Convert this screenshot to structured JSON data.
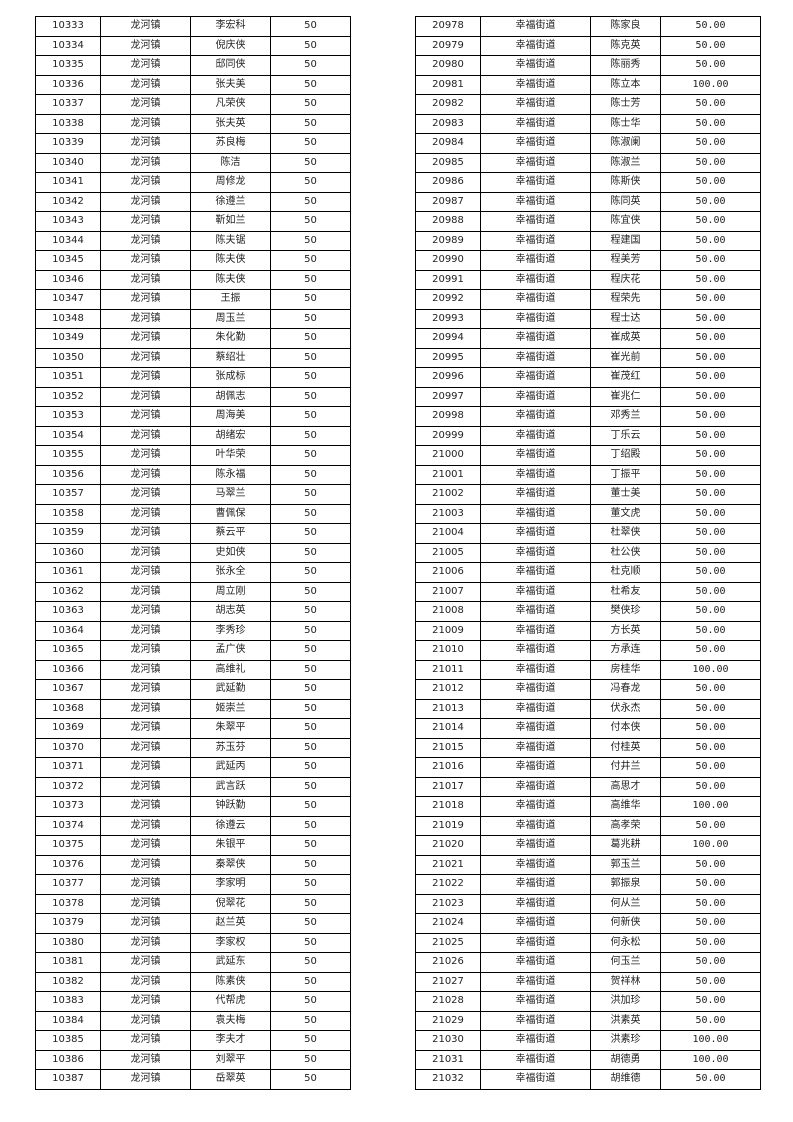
{
  "left_table": {
    "town": "龙河镇",
    "amount": "50",
    "rows": [
      [
        "10333",
        "李宏科"
      ],
      [
        "10334",
        "倪庆侠"
      ],
      [
        "10335",
        "邸同侠"
      ],
      [
        "10336",
        "张夫美"
      ],
      [
        "10337",
        "凡荣侠"
      ],
      [
        "10338",
        "张夫英"
      ],
      [
        "10339",
        "苏良梅"
      ],
      [
        "10340",
        "陈洁"
      ],
      [
        "10341",
        "周修龙"
      ],
      [
        "10342",
        "徐遵兰"
      ],
      [
        "10343",
        "靳如兰"
      ],
      [
        "10344",
        "陈夫锯"
      ],
      [
        "10345",
        "陈夫侠"
      ],
      [
        "10346",
        "陈夫侠"
      ],
      [
        "10347",
        "王振"
      ],
      [
        "10348",
        "周玉兰"
      ],
      [
        "10349",
        "朱化勤"
      ],
      [
        "10350",
        "蔡绍壮"
      ],
      [
        "10351",
        "张成标"
      ],
      [
        "10352",
        "胡佩志"
      ],
      [
        "10353",
        "周海美"
      ],
      [
        "10354",
        "胡绪宏"
      ],
      [
        "10355",
        "叶华荣"
      ],
      [
        "10356",
        "陈永福"
      ],
      [
        "10357",
        "马翠兰"
      ],
      [
        "10358",
        "曹佩保"
      ],
      [
        "10359",
        "蔡云平"
      ],
      [
        "10360",
        "史如侠"
      ],
      [
        "10361",
        "张永全"
      ],
      [
        "10362",
        "周立刚"
      ],
      [
        "10363",
        "胡志英"
      ],
      [
        "10364",
        "李秀珍"
      ],
      [
        "10365",
        "孟广侠"
      ],
      [
        "10366",
        "高维礼"
      ],
      [
        "10367",
        "武延勤"
      ],
      [
        "10368",
        "姬崇兰"
      ],
      [
        "10369",
        "朱翠平"
      ],
      [
        "10370",
        "苏玉芬"
      ],
      [
        "10371",
        "武延丙"
      ],
      [
        "10372",
        "武言跃"
      ],
      [
        "10373",
        "钟跃勤"
      ],
      [
        "10374",
        "徐遵云"
      ],
      [
        "10375",
        "朱银平"
      ],
      [
        "10376",
        "秦翠侠"
      ],
      [
        "10377",
        "李家明"
      ],
      [
        "10378",
        "倪翠花"
      ],
      [
        "10379",
        "赵兰英"
      ],
      [
        "10380",
        "李家权"
      ],
      [
        "10381",
        "武延东"
      ],
      [
        "10382",
        "陈素侠"
      ],
      [
        "10383",
        "代帮虎"
      ],
      [
        "10384",
        "袁夫梅"
      ],
      [
        "10385",
        "李夫才"
      ],
      [
        "10386",
        "刘翠平"
      ],
      [
        "10387",
        "岳翠英"
      ]
    ]
  },
  "right_table": {
    "town": "幸福街道",
    "rows": [
      [
        "20978",
        "陈家良",
        "50.00"
      ],
      [
        "20979",
        "陈克英",
        "50.00"
      ],
      [
        "20980",
        "陈丽秀",
        "50.00"
      ],
      [
        "20981",
        "陈立本",
        "100.00"
      ],
      [
        "20982",
        "陈士芳",
        "50.00"
      ],
      [
        "20983",
        "陈士华",
        "50.00"
      ],
      [
        "20984",
        "陈淑阑",
        "50.00"
      ],
      [
        "20985",
        "陈淑兰",
        "50.00"
      ],
      [
        "20986",
        "陈斯侠",
        "50.00"
      ],
      [
        "20987",
        "陈同英",
        "50.00"
      ],
      [
        "20988",
        "陈宜侠",
        "50.00"
      ],
      [
        "20989",
        "程建国",
        "50.00"
      ],
      [
        "20990",
        "程美芳",
        "50.00"
      ],
      [
        "20991",
        "程庆花",
        "50.00"
      ],
      [
        "20992",
        "程荣先",
        "50.00"
      ],
      [
        "20993",
        "程士达",
        "50.00"
      ],
      [
        "20994",
        "崔成英",
        "50.00"
      ],
      [
        "20995",
        "崔光前",
        "50.00"
      ],
      [
        "20996",
        "崔茂红",
        "50.00"
      ],
      [
        "20997",
        "崔兆仁",
        "50.00"
      ],
      [
        "20998",
        "邓秀兰",
        "50.00"
      ],
      [
        "20999",
        "丁乐云",
        "50.00"
      ],
      [
        "21000",
        "丁绍殿",
        "50.00"
      ],
      [
        "21001",
        "丁振平",
        "50.00"
      ],
      [
        "21002",
        "董士美",
        "50.00"
      ],
      [
        "21003",
        "董文虎",
        "50.00"
      ],
      [
        "21004",
        "杜翠侠",
        "50.00"
      ],
      [
        "21005",
        "杜公侠",
        "50.00"
      ],
      [
        "21006",
        "杜克顺",
        "50.00"
      ],
      [
        "21007",
        "杜希友",
        "50.00"
      ],
      [
        "21008",
        "樊侠珍",
        "50.00"
      ],
      [
        "21009",
        "方长英",
        "50.00"
      ],
      [
        "21010",
        "方承连",
        "50.00"
      ],
      [
        "21011",
        "房桂华",
        "100.00"
      ],
      [
        "21012",
        "冯春龙",
        "50.00"
      ],
      [
        "21013",
        "伏永杰",
        "50.00"
      ],
      [
        "21014",
        "付本侠",
        "50.00"
      ],
      [
        "21015",
        "付桂英",
        "50.00"
      ],
      [
        "21016",
        "付井兰",
        "50.00"
      ],
      [
        "21017",
        "高思才",
        "50.00"
      ],
      [
        "21018",
        "高维华",
        "100.00"
      ],
      [
        "21019",
        "高孝荣",
        "50.00"
      ],
      [
        "21020",
        "葛兆耕",
        "100.00"
      ],
      [
        "21021",
        "郭玉兰",
        "50.00"
      ],
      [
        "21022",
        "郭振泉",
        "50.00"
      ],
      [
        "21023",
        "何从兰",
        "50.00"
      ],
      [
        "21024",
        "何新侠",
        "50.00"
      ],
      [
        "21025",
        "何永松",
        "50.00"
      ],
      [
        "21026",
        "何玉兰",
        "50.00"
      ],
      [
        "21027",
        "贺祥林",
        "50.00"
      ],
      [
        "21028",
        "洪加珍",
        "50.00"
      ],
      [
        "21029",
        "洪素英",
        "50.00"
      ],
      [
        "21030",
        "洪素珍",
        "100.00"
      ],
      [
        "21031",
        "胡德勇",
        "100.00"
      ],
      [
        "21032",
        "胡维德",
        "50.00"
      ]
    ]
  }
}
